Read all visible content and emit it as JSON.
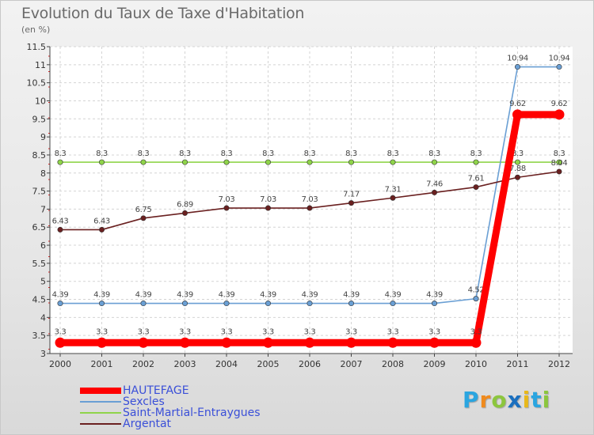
{
  "header": {
    "title": "Evolution du Taux de Taxe d'Habitation",
    "unit": "(en %)"
  },
  "chart_data": {
    "type": "line",
    "title": "Evolution du Taux de Taxe d'Habitation",
    "ylabel": "(en %)",
    "xlabel": "",
    "categories": [
      "2000",
      "2001",
      "2002",
      "2003",
      "2004",
      "2005",
      "2006",
      "2007",
      "2008",
      "2009",
      "2010",
      "2011",
      "2012"
    ],
    "ylim": [
      3,
      11.5
    ],
    "yticks": [
      "3",
      "3.5",
      "4",
      "4.5",
      "5",
      "5.5",
      "6",
      "6.5",
      "7",
      "7.5",
      "8",
      "8.5",
      "9",
      "9.5",
      "10",
      "10.5",
      "11",
      "11.5"
    ],
    "grid": true,
    "legend_position": "bottom-left",
    "series": [
      {
        "name": "HAUTEFAGE",
        "color": "#ff0000",
        "values": [
          3.3,
          3.3,
          3.3,
          3.3,
          3.3,
          3.3,
          3.3,
          3.3,
          3.3,
          3.3,
          3.3,
          9.62,
          9.62
        ],
        "labels": [
          "3.3",
          "3.3",
          "3.3",
          "3.3",
          "3.3",
          "3.3",
          "3.3",
          "3.3",
          "3.3",
          "3.3",
          "3.3",
          "9.62",
          "9.62"
        ]
      },
      {
        "name": "Sexcles",
        "color": "#6a9fd4",
        "values": [
          4.39,
          4.39,
          4.39,
          4.39,
          4.39,
          4.39,
          4.39,
          4.39,
          4.39,
          4.39,
          4.52,
          10.94,
          10.94
        ],
        "labels": [
          "4.39",
          "4.39",
          "4.39",
          "4.39",
          "4.39",
          "4.39",
          "4.39",
          "4.39",
          "4.39",
          "4.39",
          "4.52",
          "10.94",
          "10.94"
        ]
      },
      {
        "name": "Saint-Martial-Entraygues",
        "color": "#8fd44a",
        "values": [
          8.3,
          8.3,
          8.3,
          8.3,
          8.3,
          8.3,
          8.3,
          8.3,
          8.3,
          8.3,
          8.3,
          8.3,
          8.3
        ],
        "labels": [
          "8.3",
          "8.3",
          "8.3",
          "8.3",
          "8.3",
          "8.3",
          "8.3",
          "8.3",
          "8.3",
          "8.3",
          "8.3",
          "8.3",
          "8.3"
        ]
      },
      {
        "name": "Argentat",
        "color": "#6a2020",
        "values": [
          6.43,
          6.43,
          6.75,
          6.89,
          7.03,
          7.03,
          7.03,
          7.17,
          7.31,
          7.46,
          7.61,
          7.88,
          8.04
        ],
        "labels": [
          "6.43",
          "6.43",
          "6.75",
          "6.89",
          "7.03",
          "7.03",
          "7.03",
          "7.17",
          "7.31",
          "7.46",
          "7.61",
          "7.88",
          "8.04"
        ]
      }
    ]
  },
  "legend": {
    "items": [
      {
        "label": "HAUTEFAGE",
        "color": "#ff0000"
      },
      {
        "label": "Sexcles",
        "color": "#6a9fd4"
      },
      {
        "label": "Saint-Martial-Entraygues",
        "color": "#8fd44a"
      },
      {
        "label": "Argentat",
        "color": "#6a2020"
      }
    ]
  },
  "logo": {
    "text": "Proxiti",
    "letters": [
      "P",
      "r",
      "o",
      "x",
      "i",
      "t",
      "i"
    ],
    "colors": [
      "#2aa5e0",
      "#f08a1c",
      "#8cc63e",
      "#1a6fbf",
      "#e8b81a",
      "#2aa5e0",
      "#8cc63e"
    ]
  }
}
